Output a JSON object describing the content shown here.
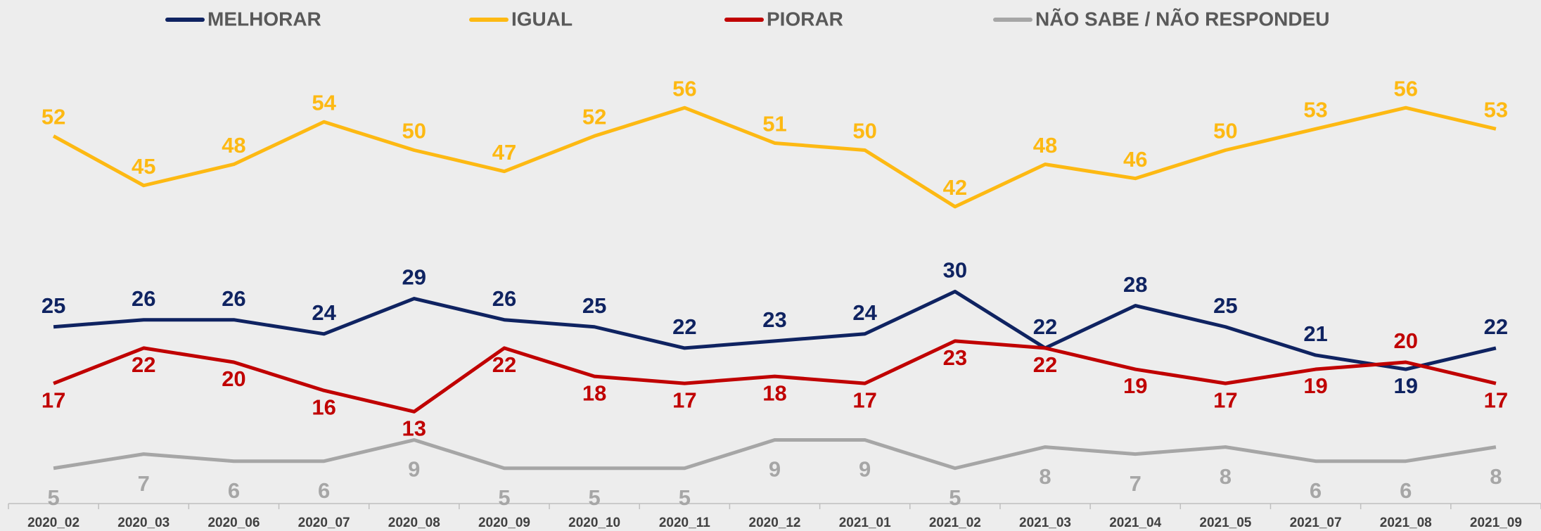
{
  "chart_data": {
    "type": "line",
    "categories": [
      "2020_02",
      "2020_03",
      "2020_06",
      "2020_07",
      "2020_08",
      "2020_09",
      "2020_10",
      "2020_11",
      "2020_12",
      "2021_01",
      "2021_02",
      "2021_03",
      "2021_04",
      "2021_05",
      "2021_07",
      "2021_08",
      "2021_09"
    ],
    "series": [
      {
        "name": "MELHORAR",
        "color": "#0f2361",
        "values": [
          25,
          26,
          26,
          24,
          29,
          26,
          25,
          22,
          23,
          24,
          30,
          22,
          28,
          25,
          21,
          19,
          22
        ]
      },
      {
        "name": "IGUAL",
        "color": "#fdb913",
        "values": [
          52,
          45,
          48,
          54,
          50,
          47,
          52,
          56,
          51,
          50,
          42,
          48,
          46,
          50,
          53,
          56,
          53
        ]
      },
      {
        "name": "PIORAR",
        "color": "#c00000",
        "values": [
          17,
          22,
          20,
          16,
          13,
          22,
          18,
          17,
          18,
          17,
          23,
          22,
          19,
          17,
          19,
          20,
          17
        ]
      },
      {
        "name": "NÃO SABE / NÃO RESPONDEU",
        "color": "#a6a6a6",
        "values": [
          5,
          7,
          6,
          6,
          9,
          5,
          5,
          5,
          9,
          9,
          5,
          8,
          7,
          8,
          6,
          6,
          8
        ]
      }
    ],
    "ylim": [
      0,
      60
    ],
    "legend": "top"
  }
}
